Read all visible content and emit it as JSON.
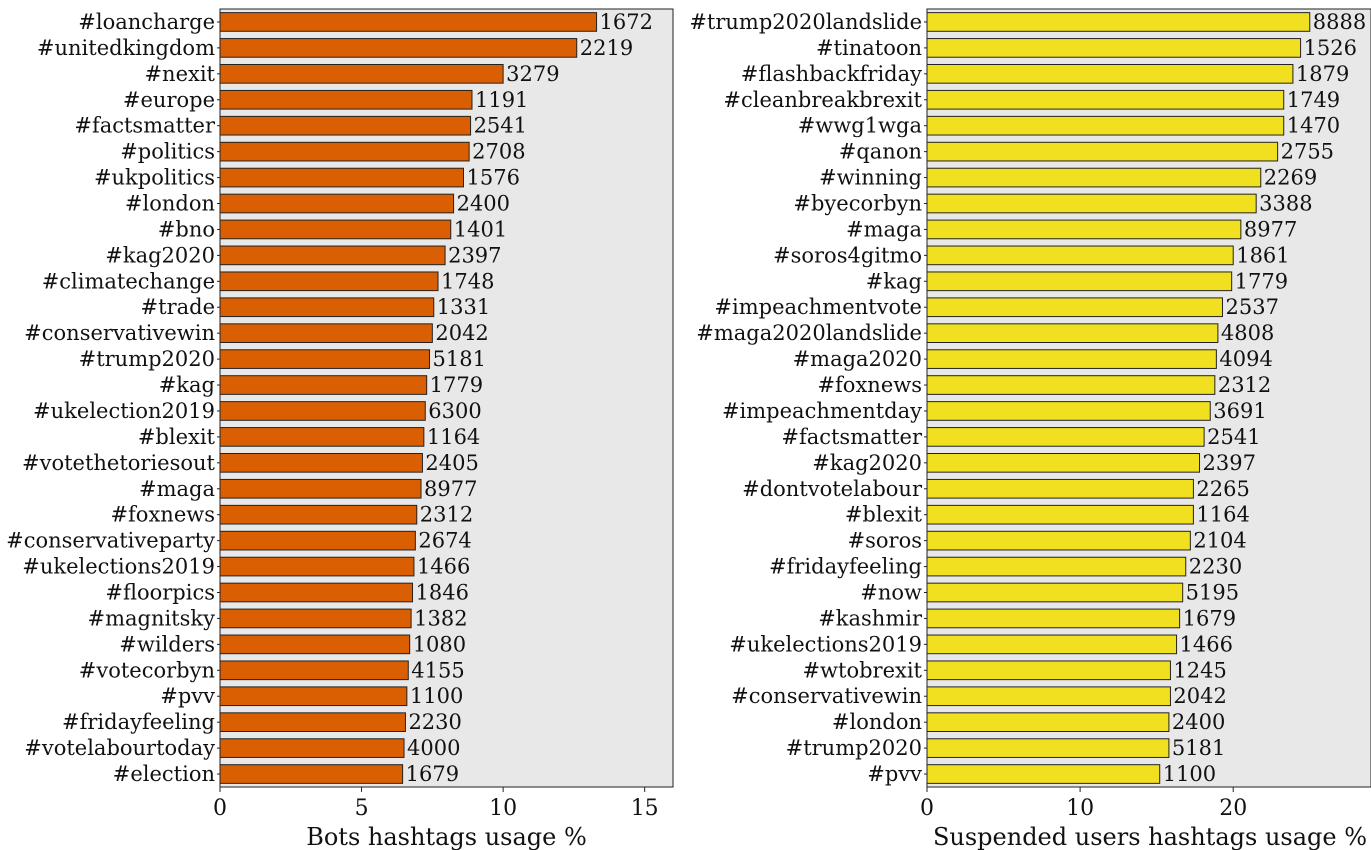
{
  "chart_data": [
    {
      "type": "bar",
      "orientation": "horizontal",
      "xlabel": "Bots hashtags usage %",
      "xlim": [
        0,
        16
      ],
      "xticks": [
        0,
        5,
        10,
        15
      ],
      "bar_color": "#d95f02",
      "categories": [
        "#loancharge",
        "#unitedkingdom",
        "#nexit",
        "#europe",
        "#factsmatter",
        "#politics",
        "#ukpolitics",
        "#london",
        "#bno",
        "#kag2020",
        "#climatechange",
        "#trade",
        "#conservativewin",
        "#trump2020",
        "#kag",
        "#ukelection2019",
        "#blexit",
        "#votethetoriesout",
        "#maga",
        "#foxnews",
        "#conservativeparty",
        "#ukelections2019",
        "#floorpics",
        "#magnitsky",
        "#wilders",
        "#votecorbyn",
        "#pvv",
        "#fridayfeeling",
        "#votelabourtoday",
        "#election"
      ],
      "values": [
        13.3,
        12.6,
        10.0,
        8.9,
        8.85,
        8.8,
        8.6,
        8.25,
        8.15,
        7.95,
        7.7,
        7.55,
        7.5,
        7.4,
        7.3,
        7.25,
        7.2,
        7.15,
        7.1,
        6.95,
        6.9,
        6.85,
        6.8,
        6.75,
        6.7,
        6.65,
        6.6,
        6.55,
        6.5,
        6.45
      ],
      "data_labels": [
        "1672",
        "2219",
        "3279",
        "1191",
        "2541",
        "2708",
        "1576",
        "2400",
        "1401",
        "2397",
        "1748",
        "1331",
        "2042",
        "5181",
        "1779",
        "6300",
        "1164",
        "2405",
        "8977",
        "2312",
        "2674",
        "1466",
        "1846",
        "1382",
        "1080",
        "4155",
        "1100",
        "2230",
        "4000",
        "1679"
      ]
    },
    {
      "type": "bar",
      "orientation": "horizontal",
      "xlabel": "Suspended users hashtags usage %",
      "xlim": [
        0,
        29
      ],
      "xticks": [
        0,
        10,
        20
      ],
      "bar_color": "#f0e020",
      "categories": [
        "#trump2020landslide",
        "#tinatoon",
        "#flashbackfriday",
        "#cleanbreakbrexit",
        "#wwg1wga",
        "#qanon",
        "#winning",
        "#byecorbyn",
        "#maga",
        "#soros4gitmo",
        "#kag",
        "#impeachmentvote",
        "#maga2020landslide",
        "#maga2020",
        "#foxnews",
        "#impeachmentday",
        "#factsmatter",
        "#kag2020",
        "#dontvotelabour",
        "#blexit",
        "#soros",
        "#fridayfeeling",
        "#now",
        "#kashmir",
        "#ukelections2019",
        "#wtobrexit",
        "#conservativewin",
        "#london",
        "#trump2020",
        "#pvv"
      ],
      "values": [
        25.0,
        24.4,
        23.9,
        23.3,
        23.3,
        22.9,
        21.8,
        21.5,
        20.5,
        20.0,
        19.9,
        19.3,
        19.0,
        18.9,
        18.8,
        18.5,
        18.1,
        17.8,
        17.4,
        17.4,
        17.2,
        16.9,
        16.7,
        16.5,
        16.3,
        15.9,
        15.9,
        15.8,
        15.8,
        15.2
      ],
      "data_labels": [
        "8888",
        "1526",
        "1879",
        "1749",
        "1470",
        "2755",
        "2269",
        "3388",
        "8977",
        "1861",
        "1779",
        "2537",
        "4808",
        "4094",
        "2312",
        "3691",
        "2541",
        "2397",
        "2265",
        "1164",
        "2104",
        "2230",
        "5195",
        "1679",
        "1466",
        "1245",
        "2042",
        "2400",
        "5181",
        "1100"
      ]
    }
  ]
}
